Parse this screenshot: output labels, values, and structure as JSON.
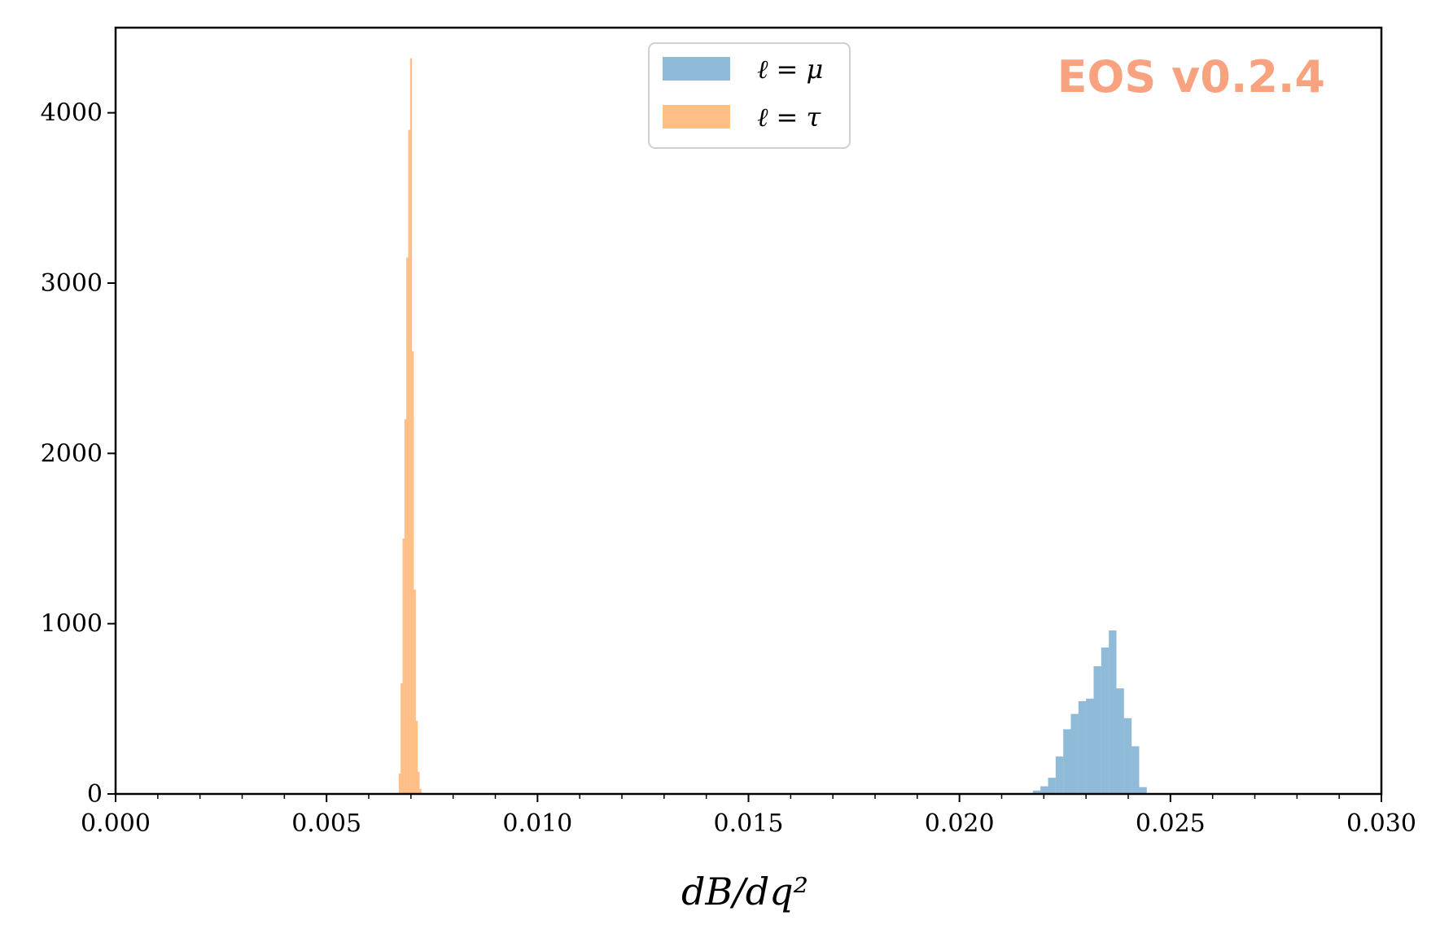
{
  "watermark": {
    "text": "EOS v0.2.4",
    "color": "#f9a27f"
  },
  "chart_data": {
    "type": "bar",
    "xlabel": "dB/dq²",
    "ylabel": "",
    "xlim": [
      0.0,
      0.03
    ],
    "ylim": [
      0,
      4500
    ],
    "xticks": [
      "0.000",
      "0.005",
      "0.010",
      "0.015",
      "0.020",
      "0.025",
      "0.030"
    ],
    "yticks": [
      "0",
      "1000",
      "2000",
      "3000",
      "4000"
    ],
    "legend_position": "top-center",
    "series": [
      {
        "name": "ℓ = μ",
        "color": "#1f77b4",
        "opacity": 0.5,
        "bin_width": 0.00018,
        "bin_starts": [
          0.02174,
          0.02192,
          0.0221,
          0.02228,
          0.02246,
          0.02264,
          0.02282,
          0.023,
          0.02318,
          0.02336,
          0.02354,
          0.02372,
          0.0239,
          0.02408,
          0.02426
        ],
        "counts": [
          20,
          45,
          95,
          220,
          380,
          470,
          545,
          560,
          750,
          860,
          960,
          620,
          445,
          280,
          40
        ]
      },
      {
        "name": "ℓ = τ",
        "color": "#ff7f0e",
        "opacity": 0.5,
        "bin_width": 4.5e-05,
        "bin_starts": [
          0.00671,
          0.006755,
          0.0068,
          0.006845,
          0.00689,
          0.006935,
          0.00698,
          0.007025,
          0.00707,
          0.007115,
          0.00716,
          0.007205
        ],
        "counts": [
          120,
          650,
          1500,
          2200,
          3150,
          3900,
          4320,
          2600,
          1200,
          430,
          130,
          30
        ]
      }
    ]
  }
}
